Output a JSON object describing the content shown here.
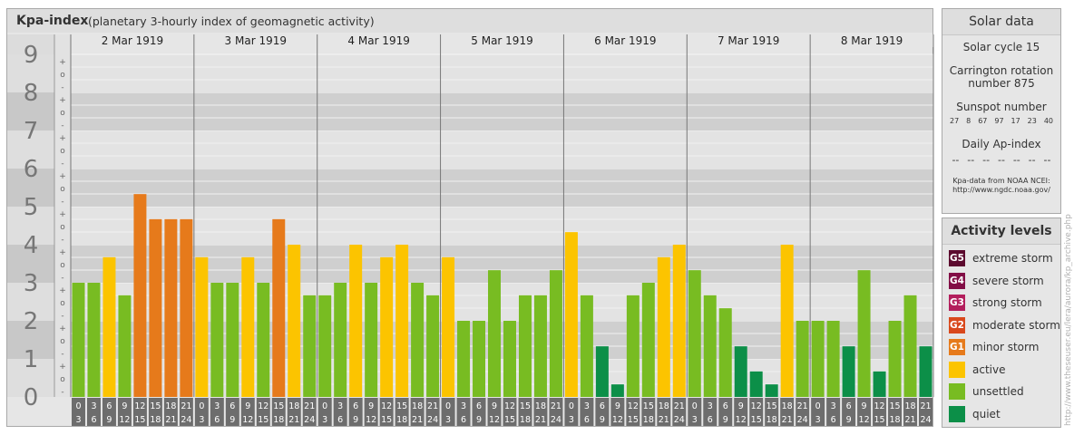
{
  "header": {
    "title": "Kpa-index",
    "subtitle": "(planetary 3-hourly index of geomagnetic activity)"
  },
  "chart_data": {
    "type": "bar",
    "ylim": [
      0,
      9
    ],
    "y_ticks": [
      "0",
      "1",
      "2",
      "3",
      "4",
      "5",
      "6",
      "7",
      "8",
      "9"
    ],
    "sub_ticks": [
      "+",
      "o",
      "-"
    ],
    "days": [
      "2 Mar 1919",
      "3 Mar 1919",
      "4 Mar 1919",
      "5 Mar 1919",
      "6 Mar 1919",
      "7 Mar 1919",
      "8 Mar 1919"
    ],
    "slot_labels": [
      [
        "0",
        "3"
      ],
      [
        "3",
        "6"
      ],
      [
        "6",
        "9"
      ],
      [
        "9",
        "12"
      ],
      [
        "12",
        "15"
      ],
      [
        "15",
        "18"
      ],
      [
        "18",
        "21"
      ],
      [
        "21",
        "24"
      ]
    ],
    "values": [
      [
        3.0,
        3.0,
        3.67,
        2.67,
        5.33,
        4.67,
        4.67,
        4.67
      ],
      [
        3.67,
        3.0,
        3.0,
        3.67,
        3.0,
        4.67,
        4.0,
        2.67
      ],
      [
        2.67,
        3.0,
        4.0,
        3.0,
        3.67,
        4.0,
        3.0,
        2.67
      ],
      [
        3.67,
        2.0,
        2.0,
        3.33,
        2.0,
        2.67,
        2.67,
        3.33
      ],
      [
        4.33,
        2.67,
        1.33,
        0.33,
        2.67,
        3.0,
        3.67,
        4.0
      ],
      [
        3.33,
        2.67,
        2.33,
        1.33,
        0.67,
        0.33,
        4.0,
        2.0
      ],
      [
        2.0,
        2.0,
        1.33,
        3.33,
        0.67,
        2.0,
        2.67,
        1.33
      ]
    ],
    "color_rule": "quiet <2, unsettled 2-3.33, active 3.67-4.33, minor storm >=4.67"
  },
  "colors": {
    "quiet": "#0c8f48",
    "unsettled": "#78bc22",
    "active": "#fcc400",
    "g1": "#e67a1b",
    "g2": "#d9481c",
    "g3": "#b31e5c",
    "g4": "#820e46",
    "g5": "#5c0a2e"
  },
  "solar": {
    "heading": "Solar data",
    "cycle": "Solar cycle 15",
    "carrington_line1": "Carrington rotation",
    "carrington_line2": "number 875",
    "sunspot_heading": "Sunspot number",
    "sunspot_values": [
      "27",
      "8",
      "67",
      "97",
      "17",
      "23",
      "40"
    ],
    "ap_heading": "Daily Ap-index",
    "ap_values": [
      "--",
      "--",
      "--",
      "--",
      "--",
      "--",
      "--"
    ],
    "source_line1": "Kpa-data from NOAA NCEI:",
    "source_line2": "http://www.ngdc.noaa.gov/"
  },
  "activity": {
    "heading": "Activity levels",
    "levels": [
      {
        "badge": "G5",
        "label": "extreme storm",
        "color": "#5c0a2e"
      },
      {
        "badge": "G4",
        "label": "severe storm",
        "color": "#820e46"
      },
      {
        "badge": "G3",
        "label": "strong storm",
        "color": "#b31e5c"
      },
      {
        "badge": "G2",
        "label": "moderate storm",
        "color": "#d9481c"
      },
      {
        "badge": "G1",
        "label": "minor storm",
        "color": "#e67a1b"
      },
      {
        "badge": "",
        "label": "active",
        "color": "#fcc400"
      },
      {
        "badge": "",
        "label": "unsettled",
        "color": "#78bc22"
      },
      {
        "badge": "",
        "label": "quiet",
        "color": "#0c8f48"
      }
    ]
  },
  "watermark": "http://www.theseuser.eu/lera/aurora/kp_archive.php"
}
